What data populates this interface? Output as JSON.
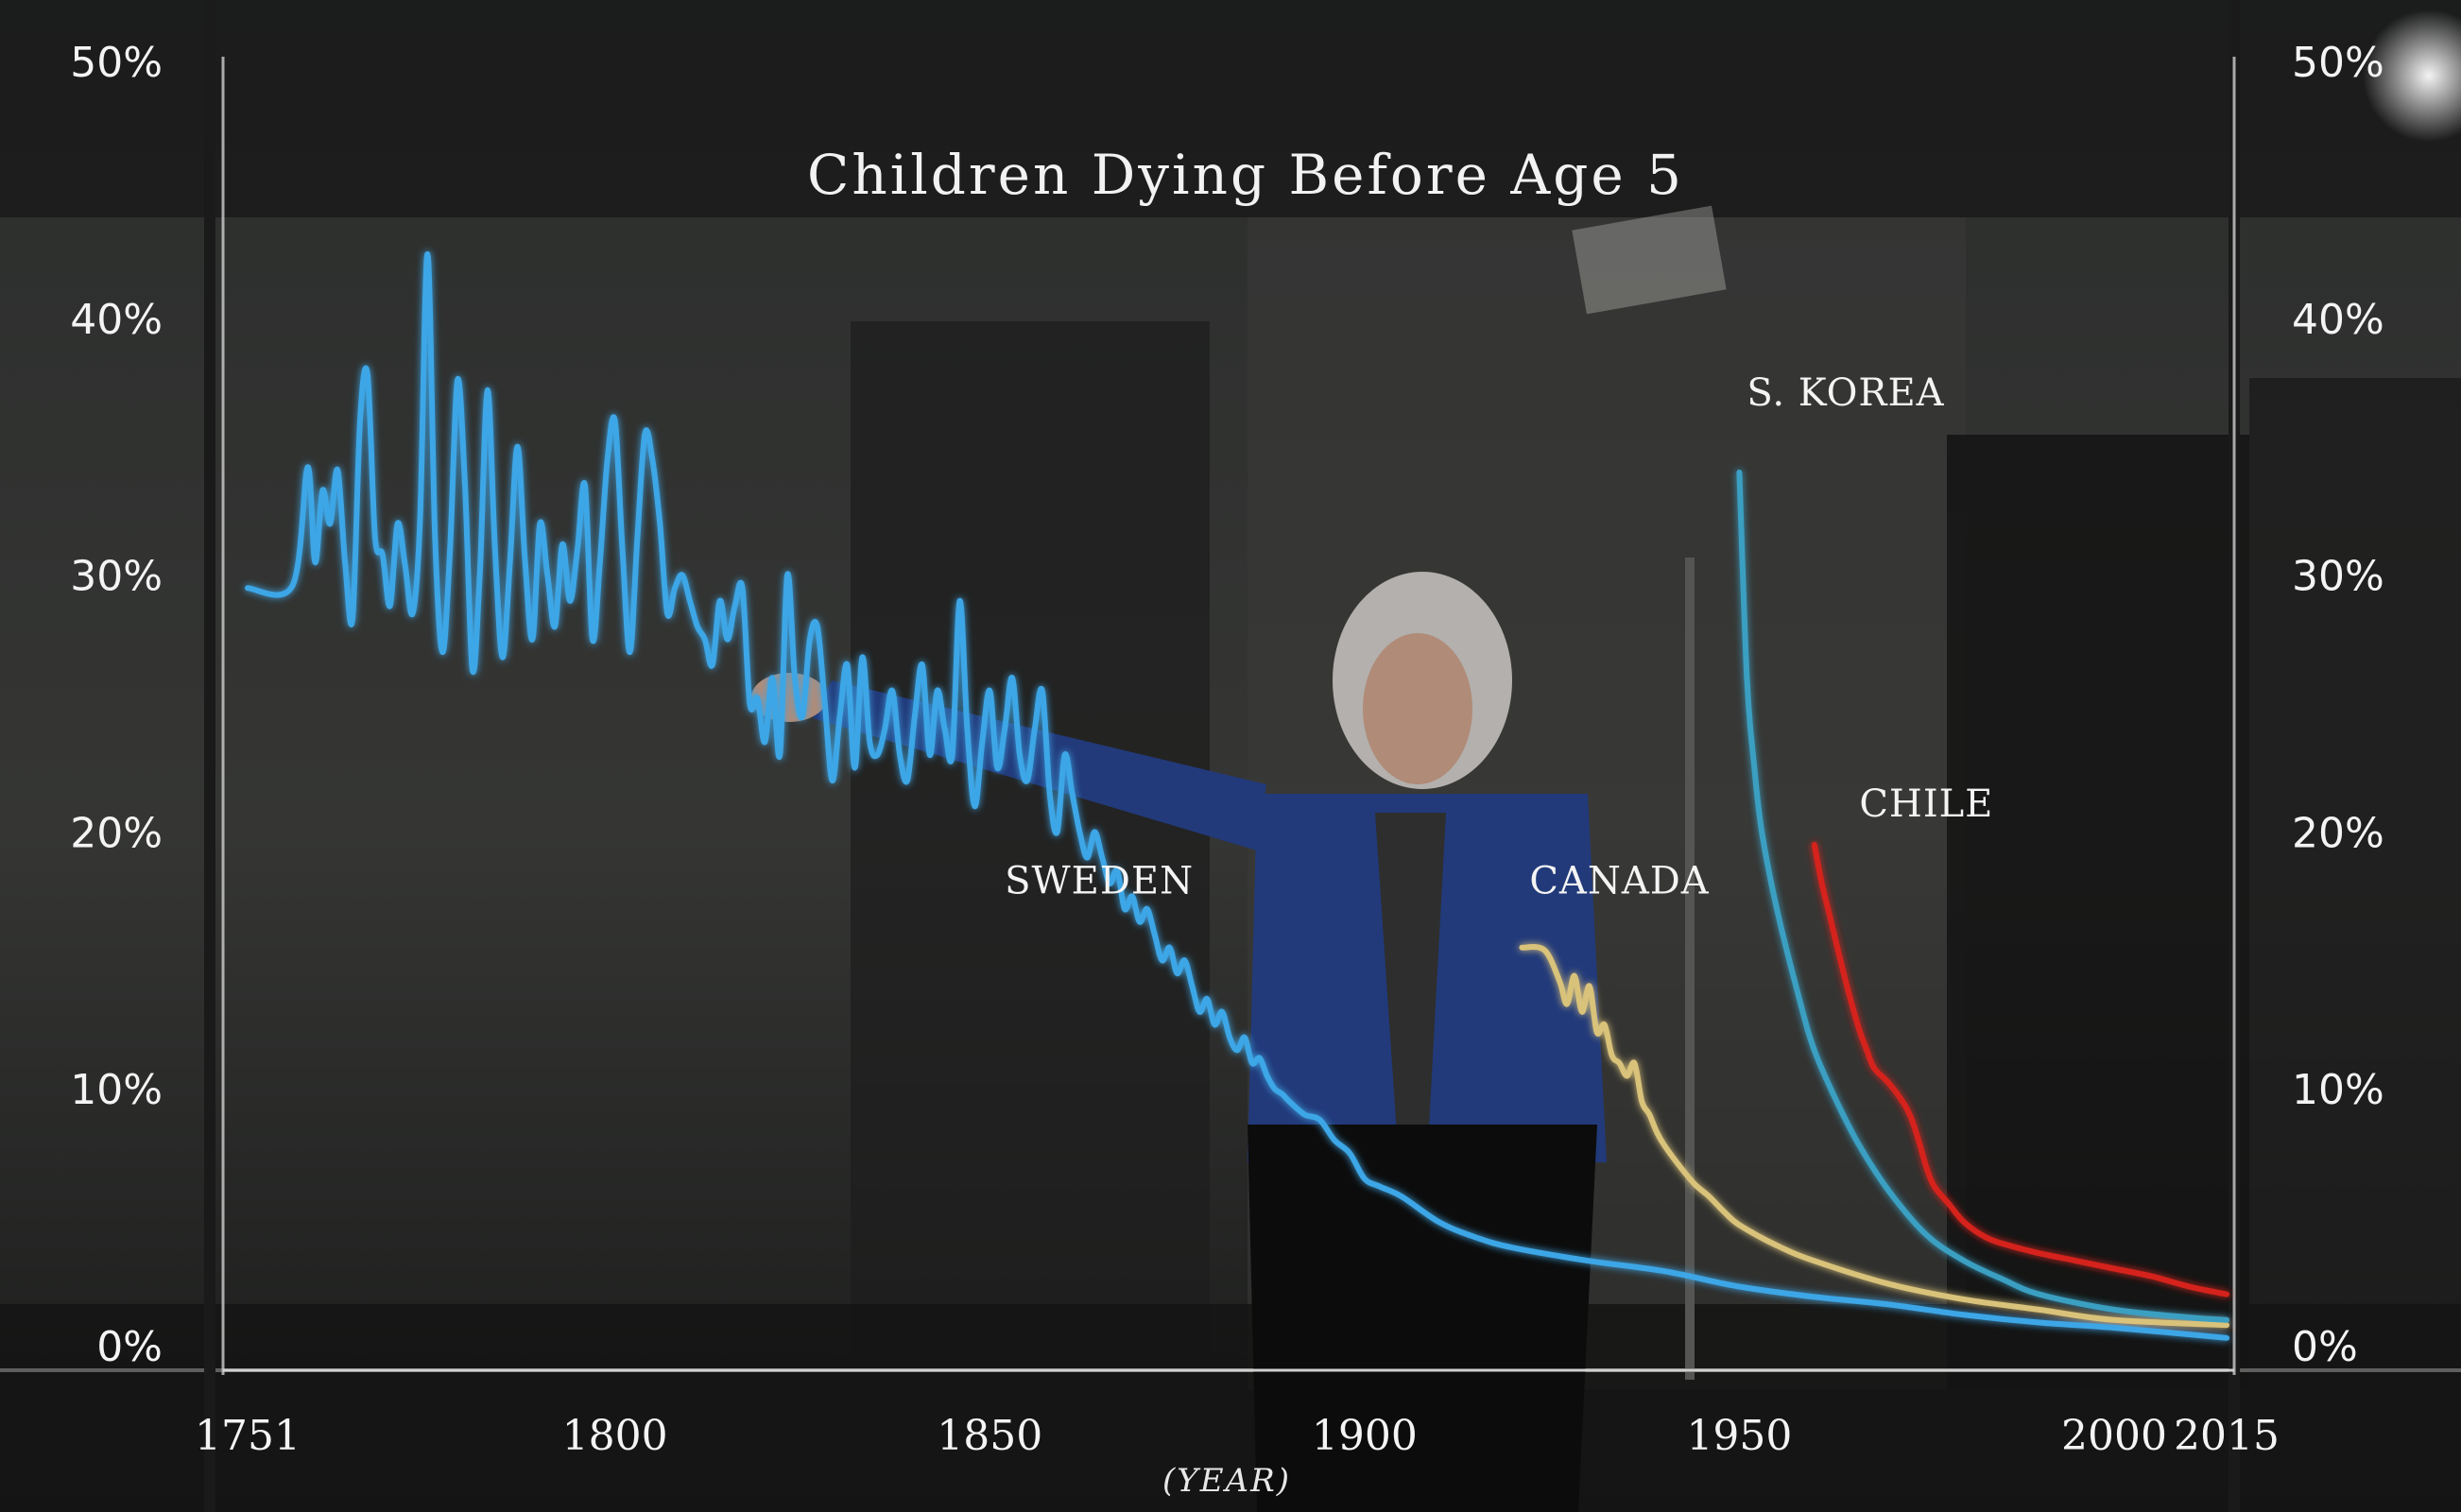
{
  "chart_data": {
    "type": "line",
    "title": "Children Dying Before Age 5",
    "xlabel": "(YEAR)",
    "ylabel": "",
    "xlim": [
      1751,
      2015
    ],
    "ylim": [
      0,
      50
    ],
    "x_ticks": [
      1751,
      1800,
      1850,
      1900,
      1950,
      2000,
      2015
    ],
    "x_tick_labels": [
      "1751",
      "1800",
      "1850",
      "1900",
      "1950",
      "2000",
      "2015"
    ],
    "y_ticks": [
      0,
      10,
      20,
      30,
      40,
      50
    ],
    "y_tick_labels": [
      "0%",
      "10%",
      "20%",
      "30%",
      "40%",
      "50%"
    ],
    "grid": false,
    "colors": {
      "sweden": "#3ea6e6",
      "canada": "#d9c27a",
      "skorea": "#3b9fc2",
      "chile": "#d6241b"
    },
    "series": [
      {
        "name": "SWEDEN",
        "points": [
          [
            1751,
            29.5
          ],
          [
            1757,
            29.6
          ],
          [
            1759,
            34.2
          ],
          [
            1760,
            30.5
          ],
          [
            1761,
            33.3
          ],
          [
            1762,
            32.0
          ],
          [
            1763,
            34.1
          ],
          [
            1764,
            30.5
          ],
          [
            1765,
            28.3
          ],
          [
            1766,
            36.0
          ],
          [
            1767,
            37.8
          ],
          [
            1768,
            31.5
          ],
          [
            1769,
            30.8
          ],
          [
            1770,
            28.8
          ],
          [
            1771,
            32.0
          ],
          [
            1772,
            30.4
          ],
          [
            1773,
            28.5
          ],
          [
            1774,
            32.1
          ],
          [
            1775,
            42.5
          ],
          [
            1776,
            31.5
          ],
          [
            1777,
            27.0
          ],
          [
            1778,
            31.0
          ],
          [
            1779,
            37.6
          ],
          [
            1780,
            33.5
          ],
          [
            1781,
            26.3
          ],
          [
            1782,
            30.2
          ],
          [
            1783,
            37.2
          ],
          [
            1784,
            31.0
          ],
          [
            1785,
            26.8
          ],
          [
            1786,
            30.5
          ],
          [
            1787,
            35.0
          ],
          [
            1788,
            30.6
          ],
          [
            1789,
            27.5
          ],
          [
            1790,
            32.0
          ],
          [
            1791,
            30.0
          ],
          [
            1792,
            28.0
          ],
          [
            1793,
            31.2
          ],
          [
            1794,
            29.0
          ],
          [
            1795,
            31.0
          ],
          [
            1796,
            33.5
          ],
          [
            1797,
            27.5
          ],
          [
            1798,
            30.5
          ],
          [
            1799,
            34.5
          ],
          [
            1800,
            36.0
          ],
          [
            1801,
            31.0
          ],
          [
            1802,
            27.0
          ],
          [
            1803,
            31.5
          ],
          [
            1804,
            35.5
          ],
          [
            1805,
            34.5
          ],
          [
            1806,
            32.0
          ],
          [
            1807,
            28.5
          ],
          [
            1808,
            29.5
          ],
          [
            1809,
            30.0
          ],
          [
            1810,
            29.0
          ],
          [
            1811,
            28.0
          ],
          [
            1812,
            27.5
          ],
          [
            1813,
            26.5
          ],
          [
            1814,
            29.0
          ],
          [
            1815,
            27.5
          ],
          [
            1816,
            28.8
          ],
          [
            1817,
            29.5
          ],
          [
            1818,
            25.0
          ],
          [
            1819,
            25.2
          ],
          [
            1820,
            23.5
          ],
          [
            1821,
            26.0
          ],
          [
            1822,
            23.0
          ],
          [
            1823,
            30.0
          ],
          [
            1824,
            26.0
          ],
          [
            1825,
            24.5
          ],
          [
            1826,
            27.5
          ],
          [
            1827,
            28.0
          ],
          [
            1828,
            25.0
          ],
          [
            1829,
            22.0
          ],
          [
            1830,
            24.5
          ],
          [
            1831,
            26.5
          ],
          [
            1832,
            22.5
          ],
          [
            1833,
            26.8
          ],
          [
            1834,
            23.5
          ],
          [
            1835,
            23.0
          ],
          [
            1836,
            24.0
          ],
          [
            1837,
            25.5
          ],
          [
            1838,
            23.0
          ],
          [
            1839,
            22.0
          ],
          [
            1840,
            24.5
          ],
          [
            1841,
            26.5
          ],
          [
            1842,
            23.0
          ],
          [
            1843,
            25.5
          ],
          [
            1844,
            24.0
          ],
          [
            1845,
            23.0
          ],
          [
            1846,
            29.0
          ],
          [
            1847,
            24.0
          ],
          [
            1848,
            21.0
          ],
          [
            1849,
            23.5
          ],
          [
            1850,
            25.5
          ],
          [
            1851,
            22.5
          ],
          [
            1852,
            24.0
          ],
          [
            1853,
            26.0
          ],
          [
            1854,
            23.0
          ],
          [
            1855,
            22.0
          ],
          [
            1856,
            24.0
          ],
          [
            1857,
            25.5
          ],
          [
            1858,
            21.5
          ],
          [
            1859,
            20.0
          ],
          [
            1860,
            23.0
          ],
          [
            1861,
            21.5
          ],
          [
            1862,
            20.0
          ],
          [
            1863,
            19.0
          ],
          [
            1864,
            20.0
          ],
          [
            1865,
            19.0
          ],
          [
            1866,
            18.0
          ],
          [
            1867,
            18.5
          ],
          [
            1868,
            17.0
          ],
          [
            1869,
            17.5
          ],
          [
            1870,
            16.5
          ],
          [
            1871,
            17.0
          ],
          [
            1872,
            16.0
          ],
          [
            1873,
            15.0
          ],
          [
            1874,
            15.5
          ],
          [
            1875,
            14.5
          ],
          [
            1876,
            15.0
          ],
          [
            1877,
            14.0
          ],
          [
            1878,
            13.0
          ],
          [
            1879,
            13.5
          ],
          [
            1880,
            12.5
          ],
          [
            1881,
            13.0
          ],
          [
            1882,
            12.0
          ],
          [
            1883,
            11.5
          ],
          [
            1884,
            12.0
          ],
          [
            1885,
            11.0
          ],
          [
            1886,
            11.2
          ],
          [
            1887,
            10.5
          ],
          [
            1888,
            10.0
          ],
          [
            1889,
            9.8
          ],
          [
            1890,
            9.5
          ],
          [
            1892,
            9.0
          ],
          [
            1894,
            8.8
          ],
          [
            1896,
            8.0
          ],
          [
            1898,
            7.5
          ],
          [
            1900,
            6.5
          ],
          [
            1902,
            6.2
          ],
          [
            1905,
            5.8
          ],
          [
            1910,
            4.8
          ],
          [
            1915,
            4.2
          ],
          [
            1920,
            3.8
          ],
          [
            1930,
            3.3
          ],
          [
            1940,
            2.9
          ],
          [
            1950,
            2.3
          ],
          [
            1960,
            1.9
          ],
          [
            1970,
            1.6
          ],
          [
            1980,
            1.2
          ],
          [
            1990,
            0.9
          ],
          [
            2000,
            0.7
          ],
          [
            2015,
            0.3
          ]
        ]
      },
      {
        "name": "CANADA",
        "points": [
          [
            1921,
            15.5
          ],
          [
            1924,
            15.4
          ],
          [
            1926,
            14.2
          ],
          [
            1927,
            13.3
          ],
          [
            1928,
            14.4
          ],
          [
            1929,
            13.0
          ],
          [
            1930,
            14.0
          ],
          [
            1931,
            12.2
          ],
          [
            1932,
            12.5
          ],
          [
            1933,
            11.3
          ],
          [
            1934,
            11.0
          ],
          [
            1935,
            10.5
          ],
          [
            1936,
            11.0
          ],
          [
            1937,
            9.5
          ],
          [
            1938,
            9.0
          ],
          [
            1939,
            8.3
          ],
          [
            1940,
            7.8
          ],
          [
            1942,
            7.0
          ],
          [
            1944,
            6.3
          ],
          [
            1946,
            5.8
          ],
          [
            1948,
            5.2
          ],
          [
            1950,
            4.7
          ],
          [
            1955,
            3.9
          ],
          [
            1960,
            3.3
          ],
          [
            1970,
            2.4
          ],
          [
            1980,
            1.8
          ],
          [
            1990,
            1.4
          ],
          [
            2000,
            1.0
          ],
          [
            2015,
            0.8
          ]
        ]
      },
      {
        "name": "S. KOREA",
        "points": [
          [
            1950,
            34.0
          ],
          [
            1951,
            26.0
          ],
          [
            1952,
            22.5
          ],
          [
            1953,
            20.0
          ],
          [
            1955,
            17.0
          ],
          [
            1958,
            13.5
          ],
          [
            1960,
            11.5
          ],
          [
            1963,
            9.5
          ],
          [
            1966,
            7.8
          ],
          [
            1970,
            6.0
          ],
          [
            1975,
            4.3
          ],
          [
            1980,
            3.3
          ],
          [
            1985,
            2.6
          ],
          [
            1990,
            2.0
          ],
          [
            2000,
            1.4
          ],
          [
            2010,
            1.1
          ],
          [
            2015,
            1.0
          ]
        ]
      },
      {
        "name": "CHILE",
        "points": [
          [
            1960,
            19.5
          ],
          [
            1961,
            18.0
          ],
          [
            1962,
            16.8
          ],
          [
            1963,
            15.6
          ],
          [
            1964,
            14.4
          ],
          [
            1965,
            13.3
          ],
          [
            1966,
            12.3
          ],
          [
            1967,
            11.5
          ],
          [
            1968,
            10.8
          ],
          [
            1970,
            10.2
          ],
          [
            1972,
            9.4
          ],
          [
            1973,
            8.8
          ],
          [
            1974,
            7.9
          ],
          [
            1975,
            6.9
          ],
          [
            1976,
            6.2
          ],
          [
            1978,
            5.5
          ],
          [
            1980,
            4.8
          ],
          [
            1983,
            4.2
          ],
          [
            1986,
            3.9
          ],
          [
            1990,
            3.6
          ],
          [
            1995,
            3.3
          ],
          [
            2000,
            3.0
          ],
          [
            2005,
            2.7
          ],
          [
            2010,
            2.3
          ],
          [
            2015,
            2.0
          ]
        ]
      }
    ],
    "annotations": [
      {
        "text": "SWEDEN",
        "x": 1852,
        "y": 17.6
      },
      {
        "text": "CANADA",
        "x": 1922,
        "y": 17.6
      },
      {
        "text": "S. KOREA",
        "x": 1951,
        "y": 36.6
      },
      {
        "text": "CHILE",
        "x": 1966,
        "y": 20.6
      }
    ]
  }
}
